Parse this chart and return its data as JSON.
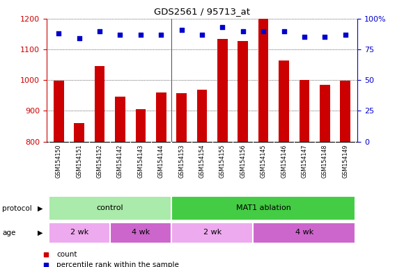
{
  "title": "GDS2561 / 95713_at",
  "samples": [
    "GSM154150",
    "GSM154151",
    "GSM154152",
    "GSM154142",
    "GSM154143",
    "GSM154144",
    "GSM154153",
    "GSM154154",
    "GSM154155",
    "GSM154156",
    "GSM154145",
    "GSM154146",
    "GSM154147",
    "GSM154148",
    "GSM154149"
  ],
  "counts": [
    998,
    860,
    1045,
    945,
    905,
    960,
    957,
    968,
    1133,
    1128,
    1200,
    1063,
    1000,
    985,
    998
  ],
  "percentile_ranks": [
    88,
    84,
    90,
    87,
    87,
    87,
    91,
    87,
    93,
    90,
    90,
    90,
    85,
    85,
    87
  ],
  "ylim_left": [
    800,
    1200
  ],
  "ylim_right": [
    0,
    100
  ],
  "yticks_left": [
    800,
    900,
    1000,
    1100,
    1200
  ],
  "yticks_right": [
    0,
    25,
    50,
    75,
    100
  ],
  "bar_color": "#cc0000",
  "dot_color": "#0000cc",
  "xtick_bg": "#cccccc",
  "protocol_groups": [
    {
      "label": "control",
      "start": 0,
      "end": 5,
      "color": "#aaeaaa"
    },
    {
      "label": "MAT1 ablation",
      "start": 6,
      "end": 14,
      "color": "#44cc44"
    }
  ],
  "age_groups": [
    {
      "label": "2 wk",
      "start": 0,
      "end": 2,
      "color": "#eeaaee"
    },
    {
      "label": "4 wk",
      "start": 3,
      "end": 5,
      "color": "#cc66cc"
    },
    {
      "label": "2 wk",
      "start": 6,
      "end": 9,
      "color": "#eeaaee"
    },
    {
      "label": "4 wk",
      "start": 10,
      "end": 14,
      "color": "#cc66cc"
    }
  ],
  "legend_items": [
    {
      "label": "count",
      "color": "#cc0000"
    },
    {
      "label": "percentile rank within the sample",
      "color": "#0000cc"
    }
  ],
  "left_axis_color": "#cc0000",
  "right_axis_color": "#0000cc"
}
